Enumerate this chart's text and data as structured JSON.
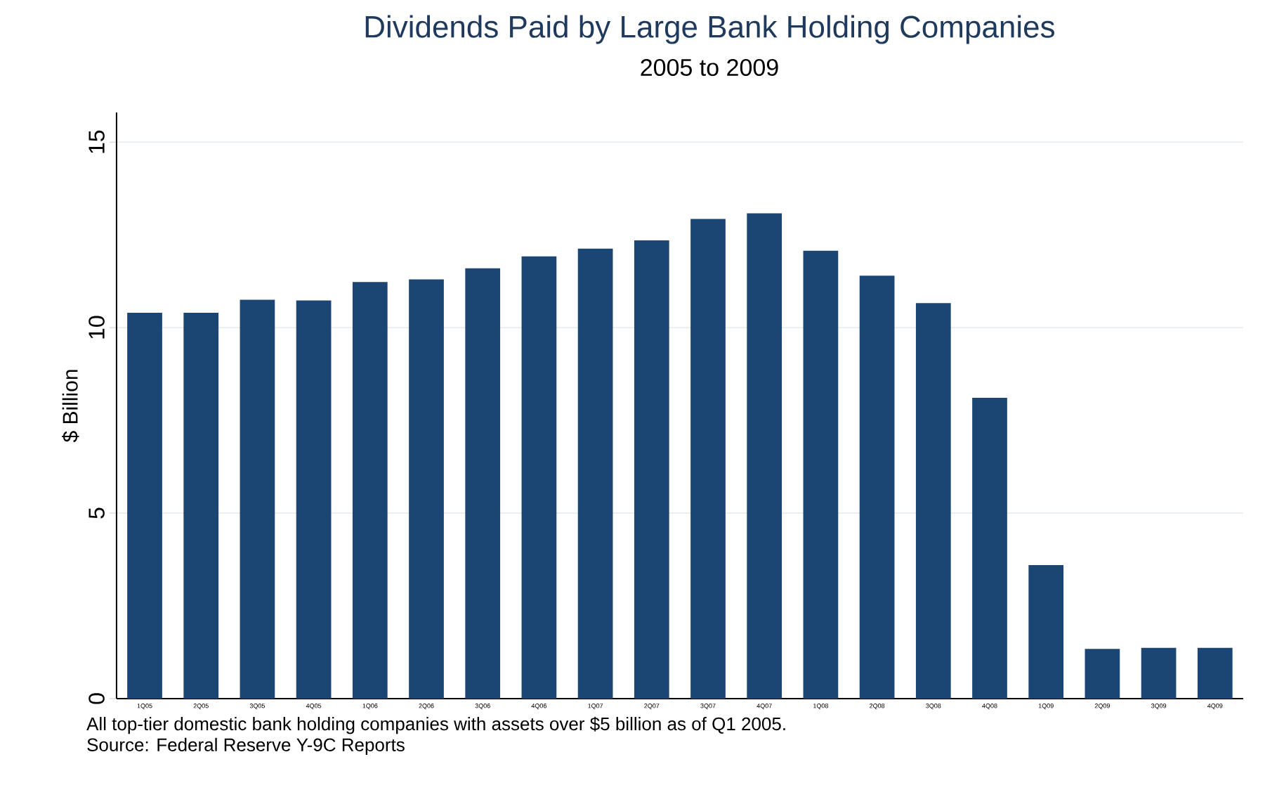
{
  "chart_data": {
    "type": "bar",
    "title": "Dividends Paid by Large Bank Holding Companies",
    "subtitle": "2005 to 2009",
    "ylabel": "$ Billion",
    "categories": [
      "1Q05",
      "2Q05",
      "3Q05",
      "4Q05",
      "1Q06",
      "2Q06",
      "3Q06",
      "4Q06",
      "1Q07",
      "2Q07",
      "3Q07",
      "4Q07",
      "1Q08",
      "2Q08",
      "3Q08",
      "4Q08",
      "1Q09",
      "2Q09",
      "3Q09",
      "4Q09"
    ],
    "values": [
      10.4,
      10.4,
      10.75,
      10.73,
      11.23,
      11.3,
      11.6,
      11.92,
      12.13,
      12.35,
      12.93,
      13.08,
      12.07,
      11.4,
      10.66,
      8.11,
      3.6,
      1.34,
      1.37,
      1.37
    ],
    "color": "#1b4673",
    "ylim": [
      0,
      15.8
    ],
    "yticks": [
      0,
      5,
      10,
      15
    ],
    "grid": "y",
    "annotations": [
      "All top-tier domestic bank holding companies with assets over $5 billion as of Q1 2005.",
      "Source: Federal Reserve Y-9C Reports"
    ]
  }
}
